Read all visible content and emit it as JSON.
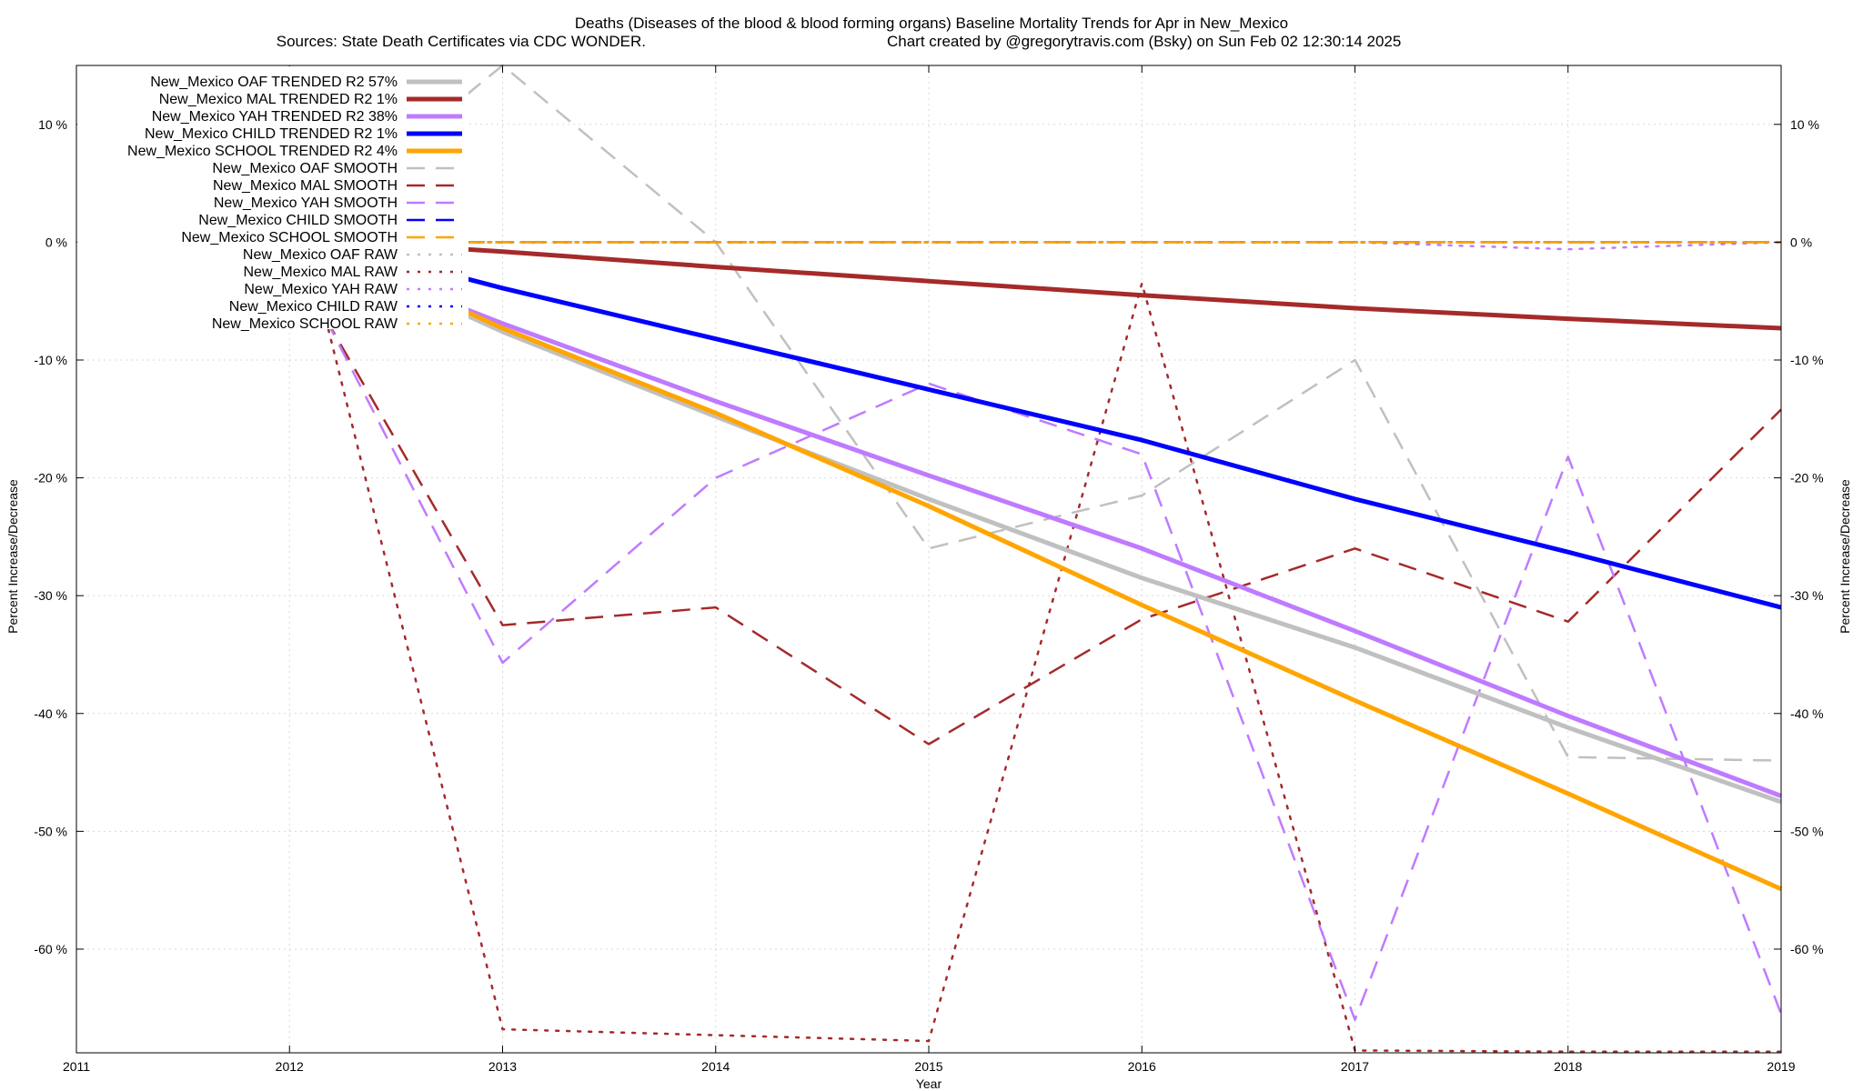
{
  "chart_data": {
    "type": "line",
    "title": "Deaths (Diseases of the blood & blood forming organs)  Baseline Mortality Trends for Apr in New_Mexico",
    "subtitle_left": "Sources: State Death Certificates via CDC WONDER.",
    "subtitle_right": "Chart created by @gregorytravis.com (Bsky) on Sun Feb 02 12:30:14 2025",
    "xlabel": "Year",
    "ylabel_left": "Percent Increase/Decrease",
    "ylabel_right": "Percent Increase/Decrease",
    "xlim": [
      2011,
      2019
    ],
    "ylim": [
      -68.8,
      15
    ],
    "x_ticks": [
      2011,
      2012,
      2013,
      2014,
      2015,
      2016,
      2017,
      2018,
      2019
    ],
    "x_tick_labels": [
      "2011",
      "2012",
      "2013",
      "2014",
      "2015",
      "2016",
      "2017",
      "2018",
      "2019"
    ],
    "y_ticks": [
      10,
      0,
      -10,
      -20,
      -30,
      -40,
      -50,
      -60
    ],
    "y_tick_labels": [
      "10 %",
      "0 %",
      "-10 %",
      "-20 %",
      "-30 %",
      "-40 %",
      "-50 %",
      "-60 %"
    ],
    "grid": true,
    "legend_position": "top-left",
    "series": [
      {
        "name": "New_Mexico OAF TRENDED R2  57%",
        "color": "#c0c0c0",
        "style": "solid",
        "width": 5,
        "x": [
          2012.83,
          2013,
          2014,
          2015,
          2016,
          2017,
          2018,
          2019
        ],
        "y": [
          -6.2,
          -7.6,
          -14.8,
          -21.8,
          -28.5,
          -34.4,
          -41.2,
          -47.5
        ]
      },
      {
        "name": "New_Mexico MAL TRENDED R2   1%",
        "color": "#a52a2a",
        "style": "solid",
        "width": 5,
        "x": [
          2012.83,
          2013,
          2014,
          2015,
          2016,
          2017,
          2018,
          2019
        ],
        "y": [
          -0.6,
          -0.8,
          -2.1,
          -3.3,
          -4.5,
          -5.6,
          -6.5,
          -7.3
        ]
      },
      {
        "name": "New_Mexico YAH TRENDED R2  38%",
        "color": "#bf7bff",
        "style": "solid",
        "width": 5,
        "x": [
          2012.83,
          2013,
          2014,
          2015,
          2016,
          2017,
          2018,
          2019
        ],
        "y": [
          -5.7,
          -6.9,
          -13.5,
          -19.8,
          -26,
          -33,
          -40.2,
          -47
        ]
      },
      {
        "name": "New_Mexico CHILD TRENDED R2   1%",
        "color": "#0000ff",
        "style": "solid",
        "width": 5,
        "x": [
          2012.83,
          2013,
          2014,
          2015,
          2016,
          2017,
          2018,
          2019
        ],
        "y": [
          -3.1,
          -3.9,
          -8.2,
          -12.5,
          -16.8,
          -21.8,
          -26.3,
          -31
        ]
      },
      {
        "name": "New_Mexico SCHOOL TRENDED R2   4%",
        "color": "#ffa500",
        "style": "solid",
        "width": 5,
        "x": [
          2012.83,
          2013,
          2014,
          2015,
          2016,
          2017,
          2018,
          2019
        ],
        "y": [
          -5.9,
          -7.3,
          -14.5,
          -22.4,
          -30.8,
          -38.9,
          -46.8,
          -54.9
        ]
      },
      {
        "name": "New_Mexico OAF SMOOTH",
        "color": "#c0c0c0",
        "style": "dashed",
        "width": 2.5,
        "x": [
          2012.83,
          2013,
          2014,
          2015,
          2016,
          2017,
          2018,
          2019
        ],
        "y": [
          12.5,
          15,
          0,
          -26,
          -21.5,
          -10,
          -43.7,
          -44
        ]
      },
      {
        "name": "New_Mexico MAL SMOOTH",
        "color": "#a52a2a",
        "style": "dashed",
        "width": 2.5,
        "x": [
          2012.17,
          2013,
          2014,
          2015,
          2016,
          2017,
          2018,
          2019
        ],
        "y": [
          -6.5,
          -32.5,
          -31,
          -42.6,
          -32,
          -26,
          -32.2,
          -14.2
        ]
      },
      {
        "name": "New_Mexico YAH SMOOTH",
        "color": "#bf7bff",
        "style": "dashed",
        "width": 2.5,
        "x": [
          2012.17,
          2013,
          2014,
          2015,
          2016,
          2017,
          2018,
          2019
        ],
        "y": [
          -6.5,
          -35.7,
          -20,
          -12,
          -18,
          -66,
          -18.2,
          -65.5
        ]
      },
      {
        "name": "New_Mexico CHILD SMOOTH",
        "color": "#0000ff",
        "style": "dashed",
        "width": 2.5,
        "x": [
          2012.83,
          2019
        ],
        "y": [
          0,
          0
        ]
      },
      {
        "name": "New_Mexico SCHOOL SMOOTH",
        "color": "#ffa500",
        "style": "dashed",
        "width": 2.5,
        "x": [
          2012.83,
          2019
        ],
        "y": [
          0,
          0
        ]
      },
      {
        "name": "New_Mexico OAF RAW",
        "color": "#c0c0c0",
        "style": "dotted",
        "width": 2.5,
        "x": [
          2012.83,
          2019
        ],
        "y": [
          0,
          0
        ]
      },
      {
        "name": "New_Mexico MAL RAW",
        "color": "#a52a2a",
        "style": "dotted",
        "width": 2.5,
        "x": [
          2012.17,
          2013,
          2014,
          2015,
          2016,
          2017,
          2018,
          2019
        ],
        "y": [
          -6.5,
          -66.8,
          -67.3,
          -67.8,
          -3.5,
          -68.6,
          -68.7,
          -68.7
        ]
      },
      {
        "name": "New_Mexico YAH RAW",
        "color": "#bf7bff",
        "style": "dotted",
        "width": 2.5,
        "x": [
          2012.83,
          2013,
          2014,
          2015,
          2016,
          2017,
          2018,
          2019
        ],
        "y": [
          0,
          0,
          0,
          0,
          0,
          0,
          -0.6,
          0
        ]
      },
      {
        "name": "New_Mexico CHILD RAW",
        "color": "#0000ff",
        "style": "dotted",
        "width": 2.5,
        "x": [
          2012.83,
          2019
        ],
        "y": [
          0,
          0
        ]
      },
      {
        "name": "New_Mexico SCHOOL RAW",
        "color": "#ffa500",
        "style": "dotted",
        "width": 2.5,
        "x": [
          2012.83,
          2019
        ],
        "y": [
          0,
          0
        ]
      }
    ]
  }
}
